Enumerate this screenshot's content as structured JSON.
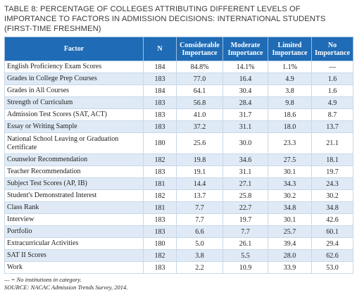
{
  "title": "TABLE 8: PERCENTAGE OF COLLEGES ATTRIBUTING DIFFERENT LEVELS OF IMPORTANCE TO FACTORS IN ADMISSION DECISIONS: INTERNATIONAL STUDENTS (FIRST-TIME FRESHMEN)",
  "headers": {
    "factor": "Factor",
    "n": "N",
    "considerable": "Considerable Importance",
    "moderate": "Moderate Importance",
    "limited": "Limited Importance",
    "none": "No Importance"
  },
  "rows": [
    {
      "factor": "English Proficiency Exam Scores",
      "n": "184",
      "considerable": "84.8%",
      "moderate": "14.1%",
      "limited": "1.1%",
      "none": "—"
    },
    {
      "factor": "Grades in College Prep Courses",
      "n": "183",
      "considerable": "77.0",
      "moderate": "16.4",
      "limited": "4.9",
      "none": "1.6"
    },
    {
      "factor": "Grades in All Courses",
      "n": "184",
      "considerable": "64.1",
      "moderate": "30.4",
      "limited": "3.8",
      "none": "1.6"
    },
    {
      "factor": "Strength of Curriculum",
      "n": "183",
      "considerable": "56.8",
      "moderate": "28.4",
      "limited": "9.8",
      "none": "4.9"
    },
    {
      "factor": "Admission Test Scores (SAT, ACT)",
      "n": "183",
      "considerable": "41.0",
      "moderate": "31.7",
      "limited": "18.6",
      "none": "8.7"
    },
    {
      "factor": "Essay or Writing Sample",
      "n": "183",
      "considerable": "37.2",
      "moderate": "31.1",
      "limited": "18.0",
      "none": "13.7"
    },
    {
      "factor": "National School Leaving or Graduation Certificate",
      "n": "180",
      "considerable": "25.6",
      "moderate": "30.0",
      "limited": "23.3",
      "none": "21.1"
    },
    {
      "factor": "Counselor Recommendation",
      "n": "182",
      "considerable": "19.8",
      "moderate": "34.6",
      "limited": "27.5",
      "none": "18.1"
    },
    {
      "factor": "Teacher Recommendation",
      "n": "183",
      "considerable": "19.1",
      "moderate": "31.1",
      "limited": "30.1",
      "none": "19.7"
    },
    {
      "factor": "Subject Test Scores (AP, IB)",
      "n": "181",
      "considerable": "14.4",
      "moderate": "27.1",
      "limited": "34.3",
      "none": "24.3"
    },
    {
      "factor": "Student's Demonstrated Interest",
      "n": "182",
      "considerable": "13.7",
      "moderate": "25.8",
      "limited": "30.2",
      "none": "30.2"
    },
    {
      "factor": "Class Rank",
      "n": "181",
      "considerable": "7.7",
      "moderate": "22.7",
      "limited": "34.8",
      "none": "34.8"
    },
    {
      "factor": "Interview",
      "n": "183",
      "considerable": "7.7",
      "moderate": "19.7",
      "limited": "30.1",
      "none": "42.6"
    },
    {
      "factor": "Portfolio",
      "n": "183",
      "considerable": "6.6",
      "moderate": "7.7",
      "limited": "25.7",
      "none": "60.1"
    },
    {
      "factor": "Extracurricular Activities",
      "n": "180",
      "considerable": "5.0",
      "moderate": "26.1",
      "limited": "39.4",
      "none": "29.4"
    },
    {
      "factor": "SAT II Scores",
      "n": "182",
      "considerable": "3.8",
      "moderate": "5.5",
      "limited": "28.0",
      "none": "62.6"
    },
    {
      "factor": "Work",
      "n": "183",
      "considerable": "2.2",
      "moderate": "10.9",
      "limited": "33.9",
      "none": "53.0"
    }
  ],
  "notes": {
    "dash": "— = No institutions in category.",
    "source": "SOURCE: NACAC Admission Trends Survey, 2014."
  }
}
